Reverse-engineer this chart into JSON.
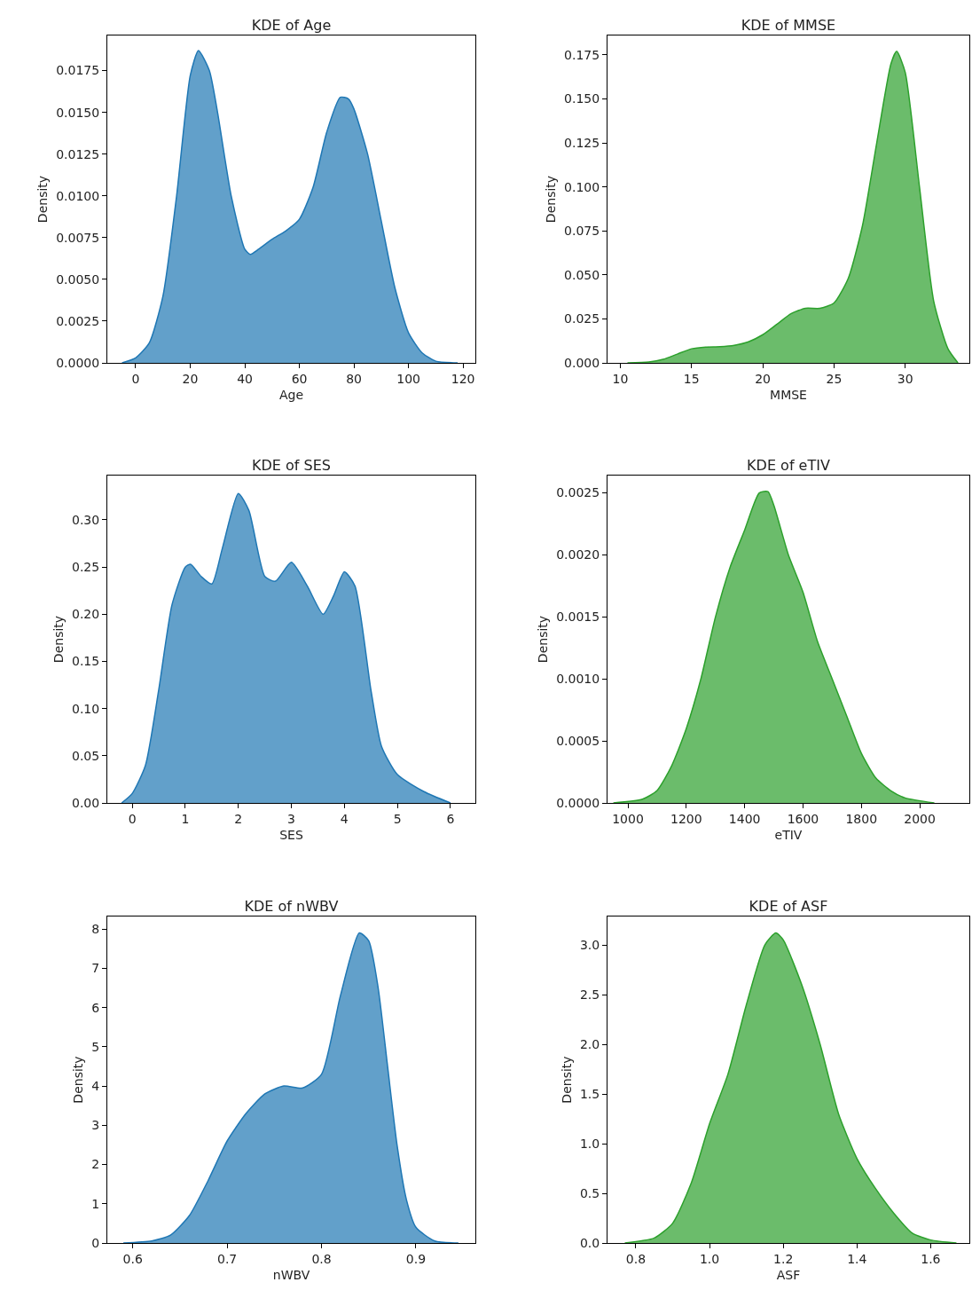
{
  "chart_data": [
    {
      "type": "area",
      "title": "KDE of Age",
      "xlabel": "Age",
      "ylabel": "Density",
      "color": "#1f77b4",
      "xlim": [
        -10.4,
        124.5
      ],
      "ylim": [
        0,
        0.0196
      ],
      "xticks": [
        0,
        20,
        40,
        60,
        80,
        100,
        120
      ],
      "yticks": [
        {
          "value": 0,
          "label": "0.0000"
        },
        0.0025,
        {
          "value": 0.005,
          "label": "0.0050"
        },
        0.0075,
        {
          "value": 0.01,
          "label": "0.0100"
        },
        0.0125,
        {
          "value": 0.015,
          "label": "0.0150"
        },
        0.0175
      ],
      "x": [
        -5,
        0,
        5,
        10,
        15,
        20,
        23,
        27,
        30,
        35,
        40,
        42,
        45,
        50,
        55,
        60,
        65,
        70,
        75,
        78,
        80,
        85,
        90,
        95,
        100,
        105,
        110,
        118
      ],
      "values": [
        0,
        0.0003,
        0.0012,
        0.004,
        0.01,
        0.0172,
        0.0187,
        0.0175,
        0.015,
        0.01,
        0.0068,
        0.0065,
        0.0068,
        0.0074,
        0.0079,
        0.0086,
        0.0105,
        0.0138,
        0.0159,
        0.0158,
        0.0152,
        0.0125,
        0.0085,
        0.0045,
        0.0018,
        0.0006,
        0.0001,
        0
      ]
    },
    {
      "type": "area",
      "title": "KDE of MMSE",
      "xlabel": "MMSE",
      "ylabel": "Density",
      "color": "#2ca02c",
      "xlim": [
        9.1,
        34.5
      ],
      "ylim": [
        0,
        0.186
      ],
      "xticks": [
        10,
        15,
        20,
        25,
        30
      ],
      "yticks": [
        {
          "value": 0,
          "label": "0.000"
        },
        0.025,
        {
          "value": 0.05,
          "label": "0.050"
        },
        0.075,
        {
          "value": 0.1,
          "label": "0.100"
        },
        0.125,
        {
          "value": 0.15,
          "label": "0.150"
        },
        0.175
      ],
      "x": [
        10.5,
        12,
        13,
        14,
        15,
        16,
        17,
        18,
        19,
        20,
        21,
        22,
        23,
        24,
        25,
        26,
        27,
        28,
        29,
        29.4,
        30,
        31,
        32,
        33,
        33.7
      ],
      "values": [
        0,
        0.0005,
        0.002,
        0.005,
        0.008,
        0.009,
        0.0092,
        0.01,
        0.012,
        0.016,
        0.022,
        0.028,
        0.031,
        0.031,
        0.034,
        0.048,
        0.078,
        0.125,
        0.17,
        0.177,
        0.165,
        0.1,
        0.035,
        0.008,
        0
      ]
    },
    {
      "type": "area",
      "title": "KDE of SES",
      "xlabel": "SES",
      "ylabel": "Density",
      "color": "#1f77b4",
      "xlim": [
        -0.47,
        6.47
      ],
      "ylim": [
        0,
        0.347
      ],
      "xticks": [
        0,
        1,
        2,
        3,
        4,
        5,
        6
      ],
      "yticks": [
        {
          "value": 0,
          "label": "0.00"
        },
        0.05,
        {
          "value": 0.1,
          "label": "0.10"
        },
        0.15,
        {
          "value": 0.2,
          "label": "0.20"
        },
        0.25,
        {
          "value": 0.3,
          "label": "0.30"
        }
      ],
      "x": [
        -0.2,
        0,
        0.25,
        0.5,
        0.75,
        1,
        1.1,
        1.3,
        1.5,
        1.7,
        2,
        2.2,
        2.5,
        2.7,
        3,
        3.3,
        3.6,
        3.8,
        4,
        4.2,
        4.5,
        4.7,
        5,
        5.5,
        6
      ],
      "values": [
        0,
        0.01,
        0.04,
        0.12,
        0.21,
        0.25,
        0.253,
        0.24,
        0.232,
        0.27,
        0.328,
        0.31,
        0.24,
        0.235,
        0.255,
        0.23,
        0.2,
        0.22,
        0.245,
        0.23,
        0.12,
        0.06,
        0.03,
        0.012,
        0
      ]
    },
    {
      "type": "area",
      "title": "KDE of eTIV",
      "xlabel": "eTIV",
      "ylabel": "Density",
      "color": "#2ca02c",
      "xlim": [
        930,
        2170
      ],
      "ylim": [
        0,
        0.00264
      ],
      "xticks": [
        1000,
        1200,
        1400,
        1600,
        1800,
        2000
      ],
      "yticks": [
        {
          "value": 0,
          "label": "0.0000"
        },
        0.0005,
        {
          "value": 0.001,
          "label": "0.0010"
        },
        0.0015,
        {
          "value": 0.002,
          "label": "0.0020"
        },
        0.0025
      ],
      "x": [
        950,
        1050,
        1100,
        1150,
        1200,
        1250,
        1300,
        1350,
        1400,
        1450,
        1480,
        1500,
        1550,
        1600,
        1650,
        1700,
        1750,
        1800,
        1850,
        1900,
        1950,
        2050
      ],
      "values": [
        0,
        3e-05,
        0.0001,
        0.0003,
        0.0006,
        0.001,
        0.0015,
        0.0019,
        0.0022,
        0.0025,
        0.00251,
        0.0024,
        0.002,
        0.0017,
        0.0013,
        0.001,
        0.0007,
        0.0004,
        0.0002,
        0.0001,
        4e-05,
        0
      ]
    },
    {
      "type": "area",
      "title": "KDE of nWBV",
      "xlabel": "nWBV",
      "ylabel": "Density",
      "color": "#1f77b4",
      "xlim": [
        0.573,
        0.963
      ],
      "ylim": [
        0,
        8.32
      ],
      "xticks": [
        0.6,
        0.7,
        0.8,
        0.9
      ],
      "yticks": [
        0,
        1,
        2,
        3,
        4,
        5,
        6,
        7,
        8
      ],
      "x": [
        0.59,
        0.62,
        0.64,
        0.66,
        0.68,
        0.7,
        0.72,
        0.74,
        0.76,
        0.78,
        0.8,
        0.82,
        0.84,
        0.85,
        0.86,
        0.87,
        0.88,
        0.89,
        0.9,
        0.92,
        0.945
      ],
      "values": [
        0,
        0.05,
        0.2,
        0.7,
        1.6,
        2.6,
        3.3,
        3.8,
        4,
        3.95,
        4.3,
        6.3,
        7.9,
        7.7,
        6.5,
        4.5,
        2.5,
        1.1,
        0.4,
        0.05,
        0
      ]
    },
    {
      "type": "area",
      "title": "KDE of ASF",
      "xlabel": "ASF",
      "ylabel": "Density",
      "color": "#2ca02c",
      "xlim": [
        0.723,
        1.705
      ],
      "ylim": [
        0,
        3.286
      ],
      "xticks": [
        0.8,
        {
          "value": 1,
          "label": "1.0"
        },
        1.2,
        1.4,
        1.6
      ],
      "yticks": [
        {
          "value": 0,
          "label": "0.0"
        },
        0.5,
        {
          "value": 1,
          "label": "1.0"
        },
        1.5,
        {
          "value": 2,
          "label": "2.0"
        },
        2.5,
        {
          "value": 3,
          "label": "3.0"
        }
      ],
      "x": [
        0.77,
        0.85,
        0.9,
        0.95,
        1,
        1.05,
        1.1,
        1.15,
        1.18,
        1.2,
        1.25,
        1.3,
        1.35,
        1.4,
        1.45,
        1.5,
        1.55,
        1.6,
        1.67
      ],
      "values": [
        0,
        0.05,
        0.2,
        0.6,
        1.2,
        1.7,
        2.4,
        3,
        3.12,
        3.05,
        2.6,
        2,
        1.3,
        0.85,
        0.55,
        0.3,
        0.1,
        0.03,
        0
      ]
    }
  ]
}
